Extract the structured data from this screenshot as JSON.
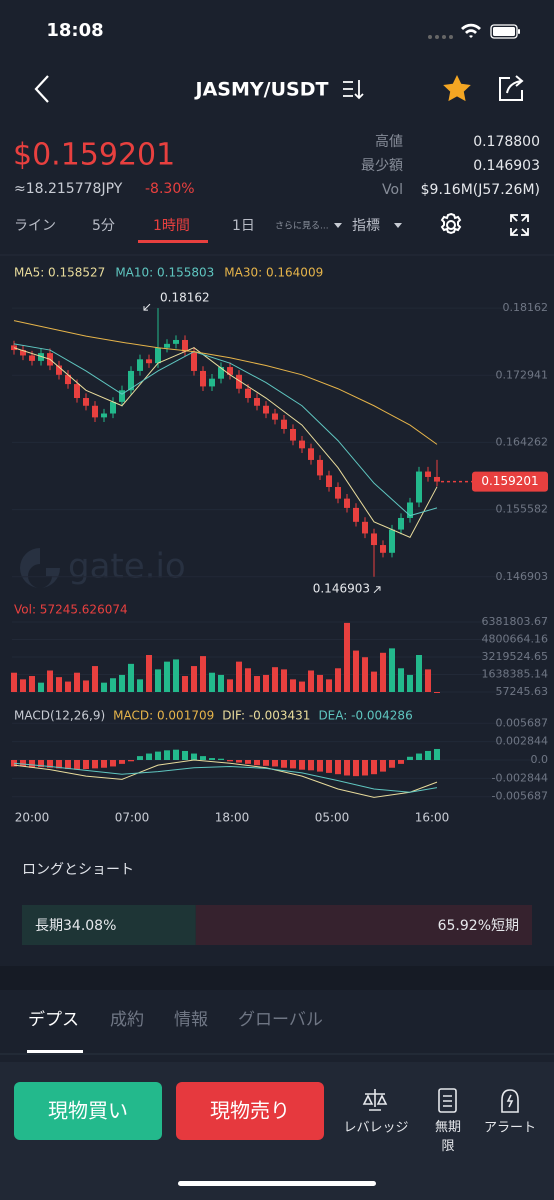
{
  "status_bar": {
    "time": "18:08"
  },
  "header": {
    "pair": "JASMY/USDT"
  },
  "ticker": {
    "price": "$0.159201",
    "fiat": "≈18.215778JPY",
    "change": "-8.30%",
    "stats": [
      {
        "label": "高値",
        "value": "0.178800"
      },
      {
        "label": "最少額",
        "value": "0.146903"
      },
      {
        "label": "Vol",
        "value": "$9.16M(J57.26M)"
      }
    ]
  },
  "interval_tabs": [
    "ライン",
    "5分",
    "1時間",
    "1日",
    "さらに見る...",
    "指標"
  ],
  "active_tab": 2,
  "chart_data": {
    "type": "candlestick",
    "up_color": "#23b98c",
    "down_color": "#e8403f",
    "open": [
      0.1768,
      0.1762,
      0.1755,
      0.1748,
      0.1758,
      0.1742,
      0.173,
      0.1718,
      0.17,
      0.169,
      0.1675,
      0.168,
      0.1695,
      0.171,
      0.1735,
      0.175,
      0.1745,
      0.1765,
      0.177,
      0.1775,
      0.176,
      0.1735,
      0.1715,
      0.1725,
      0.174,
      0.173,
      0.1712,
      0.17,
      0.169,
      0.168,
      0.1672,
      0.166,
      0.1645,
      0.1635,
      0.162,
      0.16,
      0.1585,
      0.157,
      0.1558,
      0.154,
      0.1525,
      0.151,
      0.15,
      0.153,
      0.1545,
      0.1565,
      0.1605,
      0.1598
    ],
    "high": [
      0.1774,
      0.1768,
      0.1761,
      0.1764,
      0.1764,
      0.1748,
      0.1736,
      0.1724,
      0.1706,
      0.1696,
      0.1686,
      0.1701,
      0.1716,
      0.1741,
      0.1756,
      0.1756,
      0.18162,
      0.1776,
      0.1781,
      0.1781,
      0.1766,
      0.1741,
      0.1731,
      0.1746,
      0.1746,
      0.1736,
      0.1718,
      0.1706,
      0.1696,
      0.1686,
      0.1678,
      0.1666,
      0.1651,
      0.1641,
      0.1626,
      0.1606,
      0.1591,
      0.1576,
      0.1564,
      0.1546,
      0.1531,
      0.1516,
      0.1536,
      0.1551,
      0.1571,
      0.1611,
      0.1611,
      0.162
    ],
    "low": [
      0.1756,
      0.1749,
      0.1742,
      0.1742,
      0.1736,
      0.1724,
      0.1712,
      0.1694,
      0.1684,
      0.1669,
      0.1669,
      0.1674,
      0.1689,
      0.1704,
      0.1729,
      0.1739,
      0.1739,
      0.1759,
      0.1764,
      0.1754,
      0.1729,
      0.1709,
      0.1709,
      0.1719,
      0.1724,
      0.1706,
      0.1694,
      0.1684,
      0.1674,
      0.1666,
      0.1654,
      0.1639,
      0.1629,
      0.1614,
      0.1594,
      0.1579,
      0.1564,
      0.1552,
      0.1534,
      0.1519,
      0.146903,
      0.1494,
      0.1494,
      0.1524,
      0.1539,
      0.1559,
      0.1592,
      0.1586
    ],
    "close": [
      0.1762,
      0.1755,
      0.1748,
      0.1758,
      0.1742,
      0.173,
      0.1718,
      0.17,
      0.169,
      0.1675,
      0.168,
      0.1695,
      0.171,
      0.1735,
      0.175,
      0.1745,
      0.1765,
      0.177,
      0.1775,
      0.176,
      0.1735,
      0.1715,
      0.1725,
      0.174,
      0.173,
      0.1712,
      0.17,
      0.169,
      0.168,
      0.1672,
      0.166,
      0.1645,
      0.1635,
      0.162,
      0.16,
      0.1585,
      0.157,
      0.1558,
      0.154,
      0.1525,
      0.151,
      0.15,
      0.153,
      0.1545,
      0.1565,
      0.1605,
      0.1598,
      0.159201
    ],
    "ylim": [
      0.1439,
      0.1837
    ],
    "yticks": [
      0.18162,
      0.172941,
      0.164262,
      0.155582,
      0.146903
    ],
    "moving_averages": [
      {
        "legend": "MA5: 0.158527",
        "color": "#e9dc9c",
        "x": [
          0,
          4,
          8,
          12,
          16,
          20,
          24,
          28,
          32,
          36,
          40,
          44,
          47
        ],
        "values": [
          0.1765,
          0.175,
          0.171,
          0.169,
          0.1745,
          0.1765,
          0.173,
          0.17,
          0.1665,
          0.161,
          0.154,
          0.152,
          0.158527
        ]
      },
      {
        "legend": "MA10: 0.155803",
        "color": "#5fc6c0",
        "x": [
          0,
          4,
          8,
          12,
          16,
          20,
          24,
          28,
          32,
          36,
          40,
          44,
          47
        ],
        "values": [
          0.177,
          0.1762,
          0.1735,
          0.1705,
          0.1735,
          0.176,
          0.1745,
          0.172,
          0.169,
          0.1645,
          0.159,
          0.1548,
          0.155803
        ]
      },
      {
        "legend": "MA30: 0.164009",
        "color": "#e6b44a",
        "x": [
          0,
          4,
          8,
          12,
          16,
          20,
          24,
          28,
          32,
          36,
          40,
          44,
          47
        ],
        "values": [
          0.18,
          0.179,
          0.178,
          0.1772,
          0.1765,
          0.176,
          0.1752,
          0.1742,
          0.173,
          0.1712,
          0.169,
          0.1665,
          0.164009
        ]
      }
    ],
    "watermark": "gate.io",
    "time_labels": [
      "20:00",
      "07:00",
      "18:00",
      "05:00",
      "16:00"
    ],
    "volume": {
      "legend": "Vol: 57245.626074",
      "values": [
        1800000,
        1200000,
        1500000,
        900000,
        2000000,
        1400000,
        1000000,
        1800000,
        1100000,
        2400000,
        900000,
        1300000,
        1600000,
        2600000,
        1200000,
        3400000,
        2100000,
        2800000,
        3000000,
        1500000,
        2400000,
        3300000,
        1800000,
        1600000,
        1200000,
        2800000,
        2200000,
        1500000,
        1600000,
        2300000,
        2100000,
        1200000,
        1000000,
        2000000,
        1600000,
        1200000,
        2200000,
        6300000,
        3800000,
        3200000,
        1900000,
        3600000,
        4000000,
        2200000,
        1600000,
        3400000,
        2100000,
        57245.626074
      ],
      "ylim": [
        57245.63,
        6381803.67
      ],
      "yticks": [
        6381803.67,
        4800664.16,
        3219524.65,
        1638385.14,
        57245.63
      ]
    },
    "macd": {
      "legend": "MACD(12,26,9)",
      "macd_label": "MACD: 0.001709",
      "dif_label": "DIF: -0.003431",
      "dea_label": "DEA: -0.004286",
      "histogram": [
        -0.001,
        -0.001,
        -0.0012,
        -0.0011,
        -0.0012,
        -0.0013,
        -0.0014,
        -0.0015,
        -0.0014,
        -0.0013,
        -0.0012,
        -0.001,
        -0.0006,
        -0.0002,
        0.0006,
        0.001,
        0.0013,
        0.0015,
        0.0016,
        0.0014,
        0.001,
        0.0006,
        0.0003,
        0.0002,
        -0.0002,
        -0.0004,
        -0.0006,
        -0.0008,
        -0.0009,
        -0.001,
        -0.0012,
        -0.0013,
        -0.0015,
        -0.0016,
        -0.0018,
        -0.002,
        -0.0022,
        -0.0024,
        -0.0025,
        -0.0024,
        -0.0022,
        -0.0018,
        -0.0012,
        -0.0006,
        0.0005,
        0.001,
        0.0014,
        0.001709
      ],
      "dif": {
        "color": "#e9dc9c",
        "x": [
          0,
          4,
          8,
          12,
          16,
          20,
          24,
          28,
          32,
          36,
          40,
          44,
          47
        ],
        "values": [
          -0.0008,
          -0.0015,
          -0.0025,
          -0.003,
          -0.0008,
          0.0,
          -0.0005,
          -0.0012,
          -0.0025,
          -0.0045,
          -0.0058,
          -0.005,
          -0.003431
        ]
      },
      "dea": {
        "color": "#5fc6c0",
        "x": [
          0,
          4,
          8,
          12,
          16,
          20,
          24,
          28,
          32,
          36,
          40,
          44,
          47
        ],
        "values": [
          -0.0005,
          -0.001,
          -0.0016,
          -0.0022,
          -0.0018,
          -0.0012,
          -0.001,
          -0.0013,
          -0.002,
          -0.0032,
          -0.0045,
          -0.005,
          -0.004286
        ]
      },
      "ylim": [
        -0.0062,
        0.0062
      ],
      "yticks": [
        0.005687,
        0.002844,
        {
          "value": 0,
          "label": "0.0"
        },
        -0.002844,
        -0.005687
      ]
    }
  },
  "long_short": {
    "title": "ロングとショート",
    "long_ratio": 34.08,
    "short_ratio": 65.92,
    "long_label": "長期34.08%",
    "short_label": "65.92%短期"
  },
  "section_tabs": [
    "デプス",
    "成約",
    "情報",
    "グローバル"
  ],
  "actions": {
    "buy": "現物買い",
    "sell": "現物売り",
    "leverage": "レバレッジ",
    "perpetual": "無期限",
    "alert": "アラート"
  }
}
